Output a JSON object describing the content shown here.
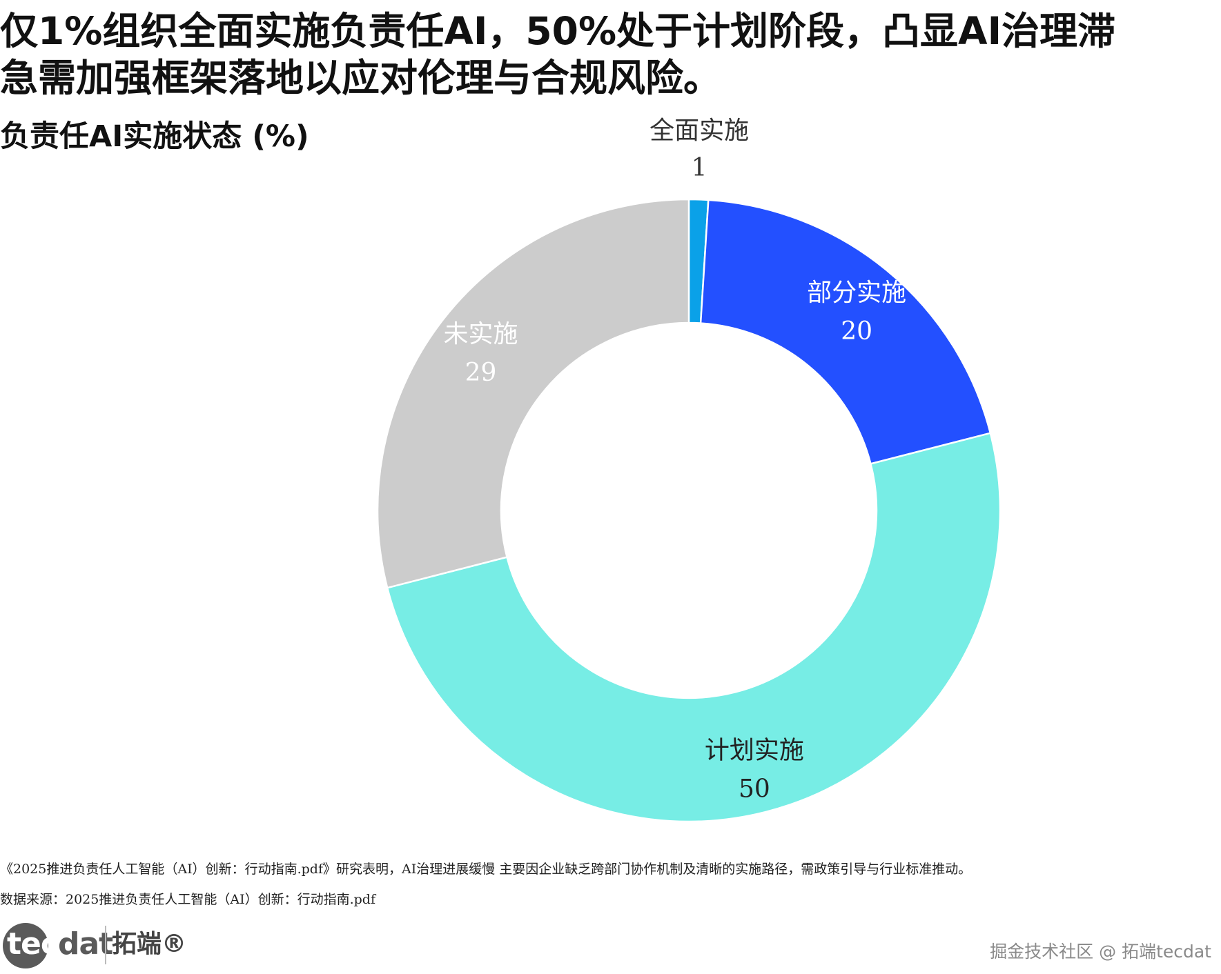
{
  "title": {
    "line1": "仅1%组织全面实施负责任AI，50%处于计划阶段，凸显AI治理滞",
    "line2": "急需加强框架落地以应对伦理与合规风险。"
  },
  "chart_data": {
    "type": "pie",
    "title": "负责任AI实施状态 (%)",
    "donut": true,
    "categories": [
      "全面实施",
      "部分实施",
      "计划实施",
      "未实施"
    ],
    "values": [
      1,
      20,
      50,
      29
    ],
    "colors": [
      "#0AA1E8",
      "#2350FF",
      "#77EDE5",
      "#CCCCCC"
    ],
    "label_colors": [
      "#333333",
      "#ffffff",
      "#222222",
      "#ffffff"
    ],
    "start": "top",
    "direction": "clockwise",
    "legend": "none"
  },
  "footnote": "《2025推进负责任人工智能（AI）创新：行动指南.pdf》研究表明，AI治理进展缓慢 主要因企业缺乏跨部门协作机制及清晰的实施路径，需政策引导与行业标准推动。",
  "source": "数据来源：2025推进负责任人工智能（AI）创新：行动指南.pdf",
  "logo": {
    "mark": "tec",
    "rest": "dat",
    "cn": "拓端®"
  },
  "watermark": "掘金技术社区 @ 拓端tecdat"
}
